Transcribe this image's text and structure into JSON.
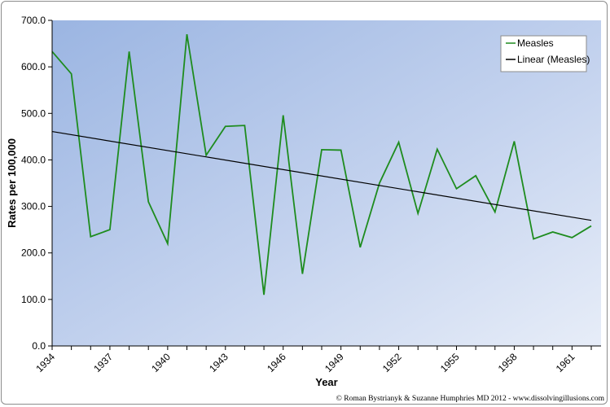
{
  "chart_data": {
    "type": "line",
    "xlabel": "Year",
    "ylabel": "Rates per 100,000",
    "ylim": [
      0,
      700
    ],
    "yticks": [
      "0.0",
      "100.0",
      "200.0",
      "300.0",
      "400.0",
      "500.0",
      "600.0",
      "700.0"
    ],
    "xtick_labels": [
      "1934",
      "1937",
      "1940",
      "1943",
      "1946",
      "1949",
      "1952",
      "1955",
      "1958",
      "1961"
    ],
    "x": [
      1934,
      1935,
      1936,
      1937,
      1938,
      1939,
      1940,
      1941,
      1942,
      1943,
      1944,
      1945,
      1946,
      1947,
      1948,
      1949,
      1950,
      1951,
      1952,
      1953,
      1954,
      1955,
      1956,
      1957,
      1958,
      1959,
      1960,
      1961,
      1962
    ],
    "series": [
      {
        "name": "Measles",
        "color": "#1e8c1e",
        "values": [
          633,
          585,
          235,
          250,
          633,
          310,
          220,
          670,
          410,
          472,
          474,
          110,
          496,
          155,
          422,
          421,
          212,
          350,
          438,
          285,
          423,
          338,
          366,
          288,
          440,
          230,
          245,
          233,
          258
        ]
      },
      {
        "name": "Linear (Measles)",
        "color": "#000000",
        "type": "trendline",
        "x": [
          1934,
          1962
        ],
        "values": [
          461,
          270
        ]
      }
    ],
    "legend_position": "top-right",
    "grid": false,
    "background": "gradient light blue"
  },
  "credit": "© Roman Bystrianyk & Suzanne Humphries MD 2012 - www.dissolvingillusions.com"
}
